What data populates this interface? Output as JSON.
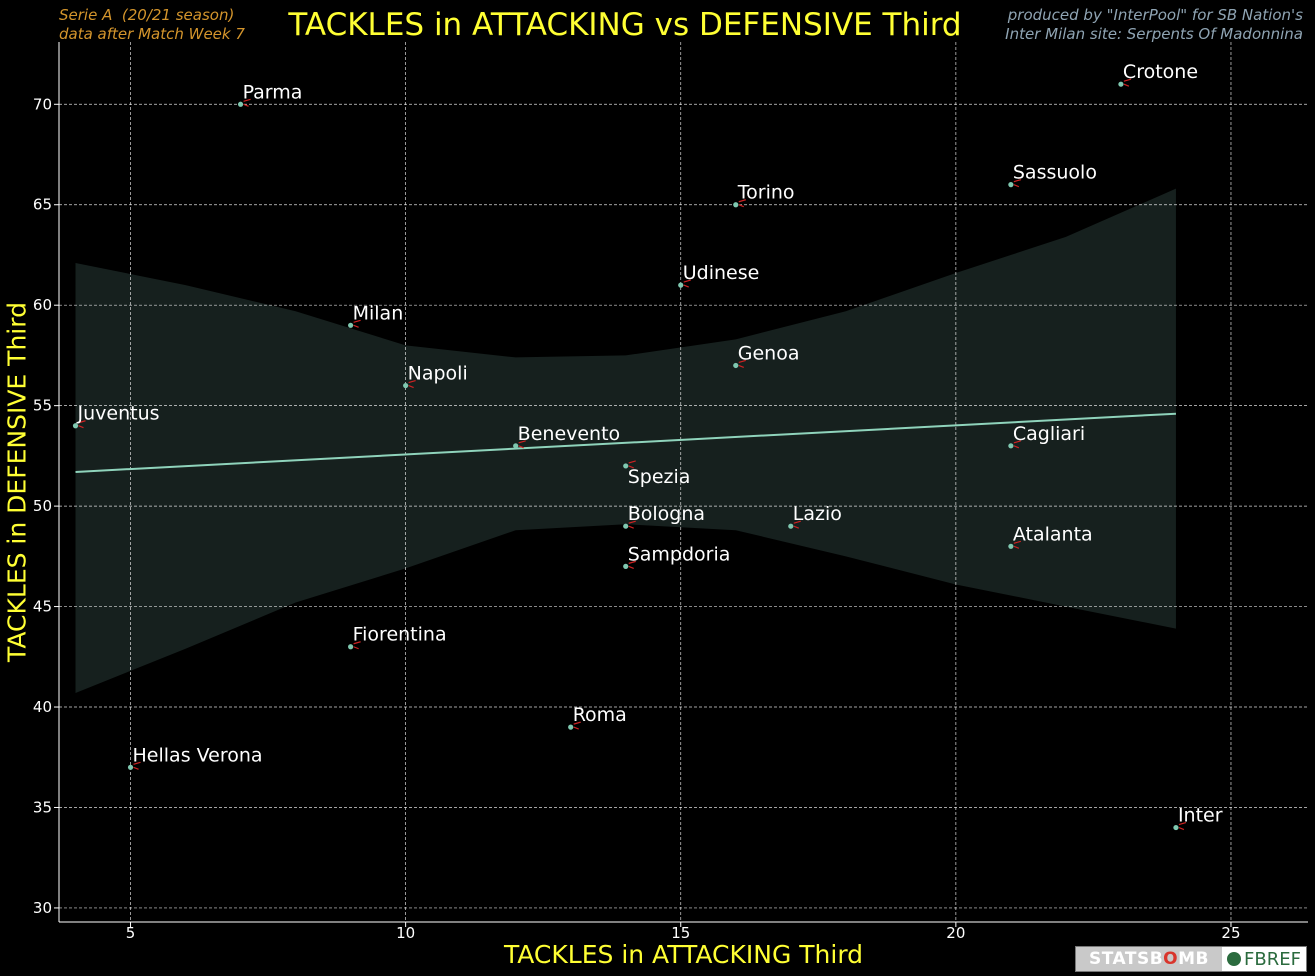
{
  "header": {
    "left_line1": "Serie A  (20/21 season)",
    "left_line2": "data after Match Week 7",
    "right_line1": "produced by \"InterPool\" for SB Nation's",
    "right_line2": "Inter Milan site: Serpents Of Madonnina"
  },
  "logos": {
    "statsbomb_pre": "STATSB",
    "statsbomb_o": "O",
    "statsbomb_post": "MB",
    "fbref": "FBREF"
  },
  "colors": {
    "background": "#000000",
    "title": "#ffff33",
    "header_left": "#d4952c",
    "header_right": "#8fa4b3",
    "points": "#7fc8b0",
    "regression_line": "#8fd4bc",
    "confidence_band": "#16201e",
    "marker_arrow": "#cc2222",
    "grid": "#ffffff"
  },
  "chart_data": {
    "type": "scatter",
    "title": "TACKLES in ATTACKING vs DEFENSIVE Third",
    "xlabel": "TACKLES in ATTACKING Third",
    "ylabel": "TACKLES in DEFENSIVE Third",
    "xlim": [
      3.7,
      26.4
    ],
    "ylim": [
      29.3,
      73.1
    ],
    "xticks": [
      5,
      10,
      15,
      20,
      25
    ],
    "yticks": [
      30,
      35,
      40,
      45,
      50,
      55,
      60,
      65,
      70
    ],
    "grid": true,
    "points": [
      {
        "team": "Crotone",
        "x": 23,
        "y": 71
      },
      {
        "team": "Parma",
        "x": 7,
        "y": 70
      },
      {
        "team": "Sassuolo",
        "x": 21,
        "y": 66
      },
      {
        "team": "Torino",
        "x": 16,
        "y": 65
      },
      {
        "team": "Udinese",
        "x": 15,
        "y": 61
      },
      {
        "team": "Milan",
        "x": 9,
        "y": 59
      },
      {
        "team": "Genoa",
        "x": 16,
        "y": 57
      },
      {
        "team": "Napoli",
        "x": 10,
        "y": 56
      },
      {
        "team": "Juventus",
        "x": 4,
        "y": 54
      },
      {
        "team": "Benevento",
        "x": 12,
        "y": 53
      },
      {
        "team": "Cagliari",
        "x": 21,
        "y": 53
      },
      {
        "team": "Spezia",
        "x": 14,
        "y": 52
      },
      {
        "team": "Bologna",
        "x": 14,
        "y": 49
      },
      {
        "team": "Lazio",
        "x": 17,
        "y": 49
      },
      {
        "team": "Atalanta",
        "x": 21,
        "y": 48
      },
      {
        "team": "Sampdoria",
        "x": 14,
        "y": 47
      },
      {
        "team": "Fiorentina",
        "x": 9,
        "y": 43
      },
      {
        "team": "Roma",
        "x": 13,
        "y": 39
      },
      {
        "team": "Hellas Verona",
        "x": 5,
        "y": 37
      },
      {
        "team": "Inter",
        "x": 24,
        "y": 34
      }
    ],
    "regression": {
      "x": [
        4,
        24
      ],
      "y": [
        51.7,
        54.6
      ]
    },
    "confidence_band": {
      "x": [
        4,
        6,
        8,
        10,
        12,
        14,
        16,
        18,
        20,
        22,
        24
      ],
      "upper": [
        62.1,
        61.0,
        59.7,
        58.0,
        57.4,
        57.5,
        58.3,
        59.7,
        61.6,
        63.4,
        65.8
      ],
      "lower": [
        40.7,
        42.9,
        45.2,
        46.9,
        48.8,
        49.1,
        48.8,
        47.5,
        46.1,
        45.0,
        43.9
      ]
    }
  }
}
